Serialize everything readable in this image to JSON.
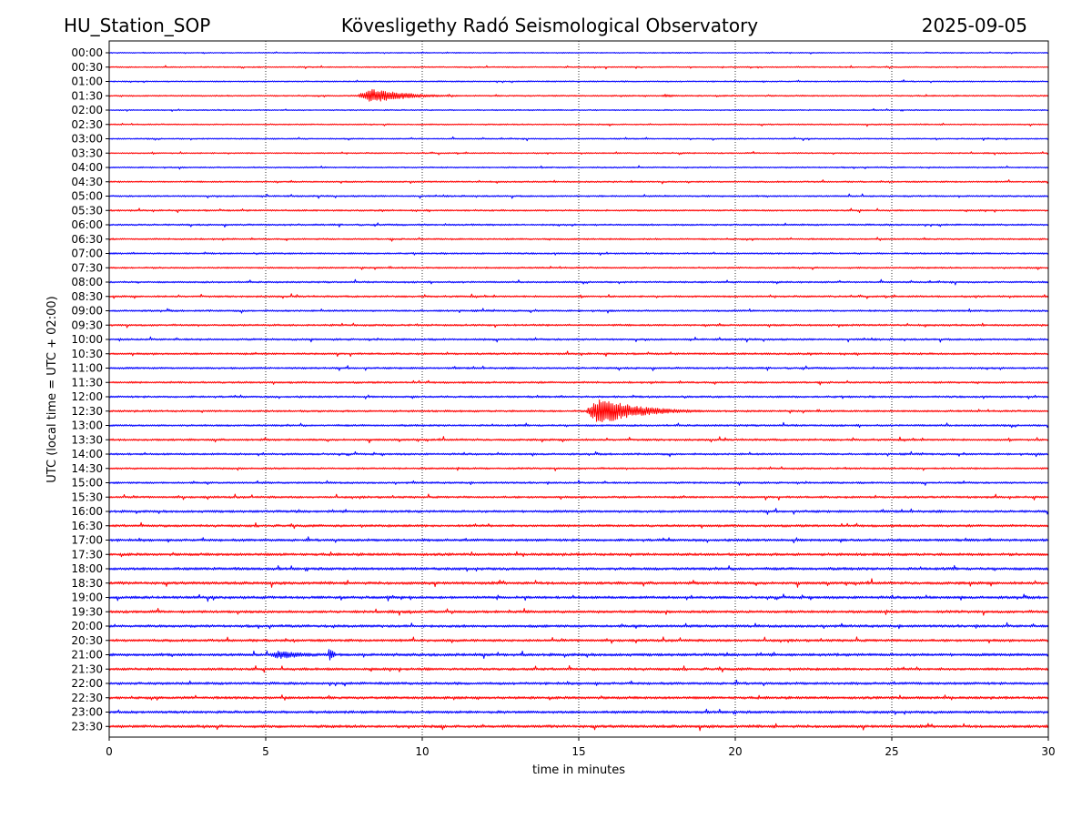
{
  "header": {
    "station": "HU_Station_SOP",
    "observatory": "Kövesligethy Radó Seismological Observatory",
    "date": "2025-09-05"
  },
  "chart_data": {
    "type": "line",
    "chart_kind": "helicorder",
    "xlabel": "time in minutes",
    "ylabel": "UTC (local time = UTC + 02:00)",
    "xlim": [
      0,
      30
    ],
    "x_ticks": [
      0,
      5,
      10,
      15,
      20,
      25,
      30
    ],
    "grid": "vertical dotted lines at each 5-minute tick",
    "row_labels": [
      "00:00",
      "00:30",
      "01:00",
      "01:30",
      "02:00",
      "02:30",
      "03:00",
      "03:30",
      "04:00",
      "04:30",
      "05:00",
      "05:30",
      "06:00",
      "06:30",
      "07:00",
      "07:30",
      "08:00",
      "08:30",
      "09:00",
      "09:30",
      "10:00",
      "10:30",
      "11:00",
      "11:30",
      "12:00",
      "12:30",
      "13:00",
      "13:30",
      "14:00",
      "14:30",
      "15:00",
      "15:30",
      "16:00",
      "16:30",
      "17:00",
      "17:30",
      "18:00",
      "18:30",
      "19:00",
      "19:30",
      "20:00",
      "20:30",
      "21:00",
      "21:30",
      "22:00",
      "22:30",
      "23:00",
      "23:30"
    ],
    "row_colors": [
      "#0000ff",
      "#ff0000"
    ],
    "trace_amplitude_by_row": [
      0.25,
      0.28,
      0.3,
      0.32,
      0.28,
      0.3,
      0.3,
      0.3,
      0.32,
      0.35,
      0.38,
      0.38,
      0.4,
      0.38,
      0.38,
      0.38,
      0.4,
      0.42,
      0.42,
      0.45,
      0.45,
      0.45,
      0.45,
      0.45,
      0.45,
      0.45,
      0.45,
      0.48,
      0.45,
      0.42,
      0.45,
      0.5,
      0.55,
      0.55,
      0.6,
      0.62,
      0.65,
      0.65,
      0.62,
      0.62,
      0.6,
      0.6,
      0.65,
      0.6,
      0.6,
      0.6,
      0.62,
      0.65
    ],
    "events": [
      {
        "row": "01:30",
        "x_start": 7.9,
        "x_end": 11.4,
        "peak_amplitude": 4.0
      },
      {
        "row": "01:30",
        "x_start": 17.6,
        "x_end": 18.8,
        "peak_amplitude": 1.0
      },
      {
        "row": "12:30",
        "x_start": 15.2,
        "x_end": 19.0,
        "peak_amplitude": 7.5
      },
      {
        "row": "21:00",
        "x_start": 5.0,
        "x_end": 8.5,
        "peak_amplitude": 2.2
      },
      {
        "row": "21:00",
        "x_start": 7.0,
        "x_end": 7.3,
        "peak_amplitude": 6.5
      }
    ]
  }
}
